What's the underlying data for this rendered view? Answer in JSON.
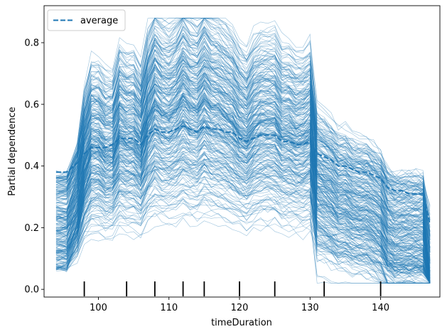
{
  "chart_data": {
    "type": "line",
    "xlabel": "timeDuration",
    "ylabel": "Partial dependence",
    "xlim": [
      92.3,
      148.4
    ],
    "ylim": [
      -0.025,
      0.92
    ],
    "xticks": [
      100,
      110,
      120,
      130,
      140
    ],
    "xtick_labels": [
      "100",
      "110",
      "120",
      "130",
      "140"
    ],
    "yticks": [
      0.0,
      0.2,
      0.4,
      0.6,
      0.8
    ],
    "ytick_labels": [
      "0.0",
      "0.2",
      "0.4",
      "0.6",
      "0.8"
    ],
    "grid": false,
    "legend": {
      "position": "top-left",
      "entries": [
        "average"
      ]
    },
    "colors": {
      "series": "#1f77b4",
      "axes": "#000000"
    },
    "x": [
      94,
      95.5,
      97,
      98,
      99,
      100,
      101,
      102,
      103,
      104,
      105,
      106,
      107,
      108,
      109,
      110,
      111,
      112,
      113,
      114,
      115,
      116,
      117,
      118,
      119,
      120,
      121,
      122,
      123,
      124,
      125,
      126,
      127,
      128,
      129,
      130,
      131,
      132,
      133,
      134,
      135,
      136,
      137,
      138,
      139,
      140,
      141,
      142,
      143,
      144,
      145,
      146,
      147
    ],
    "series": [
      {
        "name": "average",
        "style": "dashed",
        "values": [
          0.38,
          0.38,
          0.41,
          0.44,
          0.46,
          0.46,
          0.46,
          0.47,
          0.49,
          0.49,
          0.49,
          0.47,
          0.5,
          0.52,
          0.51,
          0.51,
          0.52,
          0.53,
          0.52,
          0.51,
          0.53,
          0.52,
          0.52,
          0.51,
          0.51,
          0.49,
          0.48,
          0.49,
          0.5,
          0.5,
          0.5,
          0.48,
          0.48,
          0.47,
          0.47,
          0.48,
          0.44,
          0.43,
          0.42,
          0.4,
          0.4,
          0.39,
          0.38,
          0.38,
          0.37,
          0.36,
          0.33,
          0.32,
          0.32,
          0.31,
          0.31,
          0.31,
          0.21
        ]
      }
    ],
    "ice_curves": {
      "count": 300,
      "value_range": [
        0.02,
        0.88
      ],
      "description_of_pattern": "individual conditional expectation curves following the average shape, offset per sample",
      "jump_profile": [
        0.0,
        0.0,
        0.1,
        0.25,
        0.33,
        0.33,
        0.3,
        0.3,
        0.38,
        0.36,
        0.36,
        0.32,
        0.42,
        0.48,
        0.45,
        0.44,
        0.46,
        0.5,
        0.47,
        0.46,
        0.5,
        0.47,
        0.46,
        0.44,
        0.42,
        0.38,
        0.36,
        0.4,
        0.42,
        0.42,
        0.42,
        0.38,
        0.38,
        0.36,
        0.36,
        0.38,
        0.22,
        0.2,
        0.18,
        0.15,
        0.15,
        0.13,
        0.12,
        0.12,
        0.1,
        0.08,
        0.02,
        0.0,
        0.0,
        0.0,
        0.0,
        0.0,
        -0.25
      ]
    },
    "rug": [
      98,
      104,
      108,
      112,
      115,
      120,
      125,
      132,
      140
    ]
  }
}
